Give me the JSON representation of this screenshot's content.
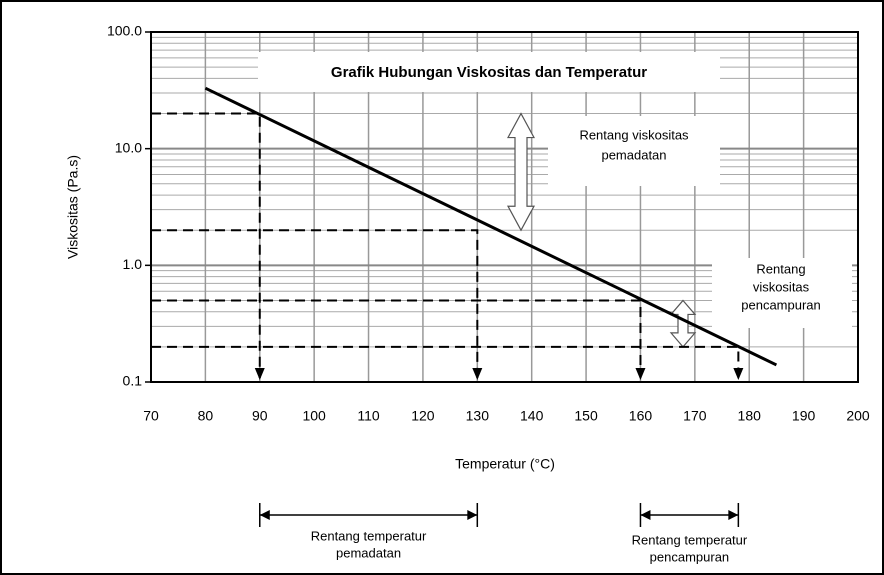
{
  "chart_data": {
    "type": "line",
    "title": "Grafik Hubungan Viskositas dan Temperatur",
    "x_label": "Temperatur (°C)",
    "y_label": "Viskositas (Pa.s)",
    "y_scale": "log",
    "grid": true,
    "color": "#000000",
    "xlim": [
      70,
      200
    ],
    "xticks": [
      70,
      80,
      90,
      100,
      110,
      120,
      130,
      140,
      150,
      160,
      170,
      180,
      190,
      200
    ],
    "ylim": [
      0.1,
      100
    ],
    "yticks": [
      0.1,
      {
        "value": 1,
        "label": "1.0"
      },
      {
        "value": 10,
        "label": "10.0"
      },
      {
        "value": 100,
        "label": "100.0"
      }
    ],
    "yminor": [
      0.2,
      0.3,
      0.4,
      0.5,
      0.6,
      0.7,
      0.8,
      0.9,
      2,
      3,
      4,
      5,
      6,
      7,
      8,
      9,
      20,
      30,
      40,
      50,
      60,
      70,
      80,
      90
    ],
    "x": [
      80,
      185
    ],
    "values": [
      33,
      0.14
    ],
    "reference_points": {
      "x": [
        90,
        130,
        160,
        178
      ],
      "y": [
        20,
        2,
        0.5,
        0.2
      ]
    },
    "annotations": {
      "viscosity_compaction": [
        "Rentang viskositas",
        "pemadatan"
      ],
      "viscosity_mixing": [
        "Rentang",
        "viskositas",
        "pencampuran"
      ],
      "temperature_compaction": [
        "Rentang temperatur",
        "pemadatan"
      ],
      "temperature_mixing": [
        "Rentang temperatur",
        "pencampuran"
      ]
    }
  }
}
